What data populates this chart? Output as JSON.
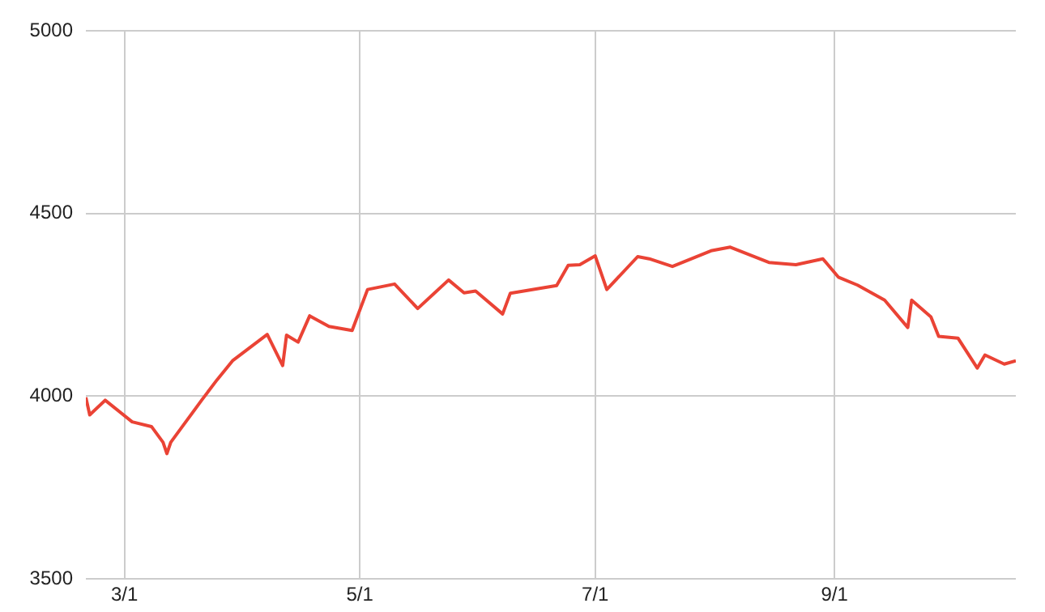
{
  "chart_data": {
    "type": "line",
    "x": [
      "--02-19",
      "--02-20",
      "--02-24",
      "--03-03",
      "--03-08",
      "--03-11",
      "--03-12",
      "--03-13",
      "--03-16",
      "--03-21",
      "--03-25",
      "--03-29",
      "--04-07",
      "--04-11",
      "--04-12",
      "--04-15",
      "--04-18",
      "--04-23",
      "--04-29",
      "--05-03",
      "--05-10",
      "--05-16",
      "--05-20",
      "--05-24",
      "--05-28",
      "--05-31",
      "--06-07",
      "--06-09",
      "--06-21",
      "--06-24",
      "--06-27",
      "--07-01",
      "--07-04",
      "--07-12",
      "--07-15",
      "--07-21",
      "--07-31",
      "--08-05",
      "--08-15",
      "--08-22",
      "--08-29",
      "--09-02",
      "--09-07",
      "--09-14",
      "--09-20",
      "--09-21",
      "--09-26",
      "--09-28",
      "--10-03",
      "--10-08",
      "--10-10",
      "--10-15",
      "--10-18"
    ],
    "series": [
      {
        "color": "#ea4335",
        "values": [
          3997,
          3949,
          3989,
          3930,
          3917,
          3874,
          3843,
          3874,
          3917,
          3989,
          4045,
          4097,
          4169,
          4084,
          4167,
          4148,
          4220,
          4191,
          4180,
          4292,
          4307,
          4240,
          4279,
          4318,
          4283,
          4288,
          4225,
          4282,
          4303,
          4358,
          4360,
          4384,
          4292,
          4382,
          4376,
          4355,
          4398,
          4408,
          4366,
          4360,
          4376,
          4326,
          4304,
          4263,
          4188,
          4263,
          4217,
          4164,
          4159,
          4077,
          4113,
          4088,
          4097
        ]
      }
    ],
    "xlim": [
      "--02-19",
      "--10-18"
    ],
    "xticks": [
      {
        "value": "--03-01",
        "label": "3/1"
      },
      {
        "value": "--05-01",
        "label": "5/1"
      },
      {
        "value": "--07-01",
        "label": "7/1"
      },
      {
        "value": "--09-01",
        "label": "9/1"
      }
    ],
    "ylim": [
      3500,
      5000
    ],
    "yticks": [
      3500,
      4000,
      4500,
      5000
    ],
    "grid": true,
    "legend": false,
    "marker": "none",
    "line_style": "solid"
  }
}
